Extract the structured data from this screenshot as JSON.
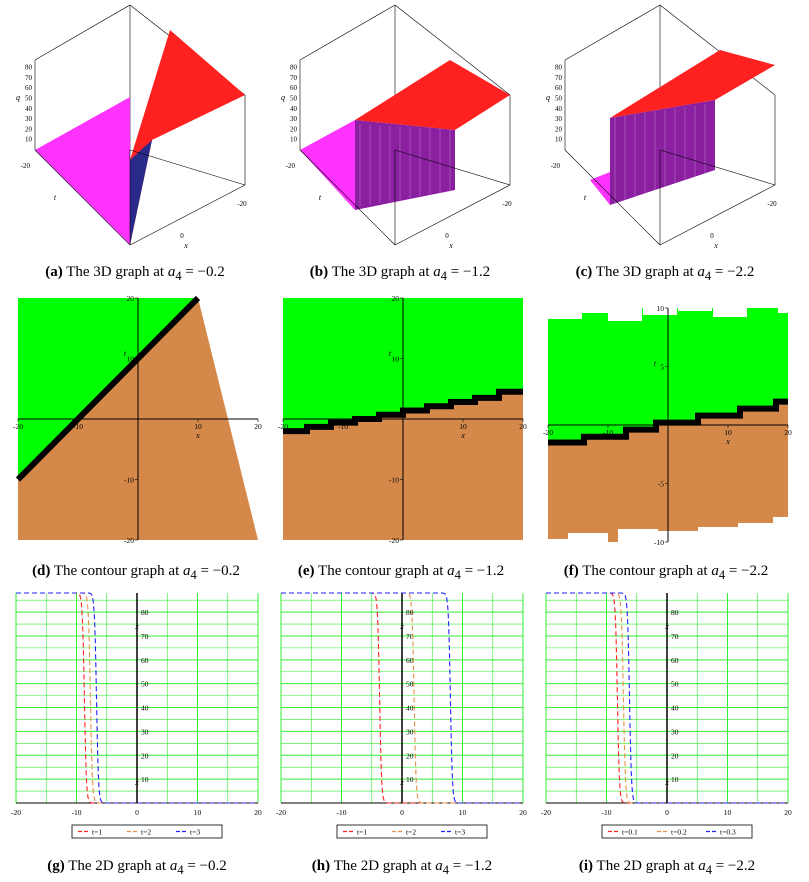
{
  "figures": [
    {
      "id": "a",
      "caption_tag": "(a)",
      "caption_text": "The 3D graph at",
      "param": "a",
      "param_sub": "4",
      "eq": "= −0.2"
    },
    {
      "id": "b",
      "caption_tag": "(b)",
      "caption_text": "The 3D graph at",
      "param": "a",
      "param_sub": "4",
      "eq": "= −1.2"
    },
    {
      "id": "c",
      "caption_tag": "(c)",
      "caption_text": "The 3D graph at",
      "param": "a",
      "param_sub": "4",
      "eq": "= −2.2"
    },
    {
      "id": "d",
      "caption_tag": "(d)",
      "caption_text": "The contour graph at",
      "param": "a",
      "param_sub": "4",
      "eq": "= −0.2"
    },
    {
      "id": "e",
      "caption_tag": "(e)",
      "caption_text": "The contour graph at",
      "param": "a",
      "param_sub": "4",
      "eq": "= −1.2"
    },
    {
      "id": "f",
      "caption_tag": "(f)",
      "caption_text": "The contour graph at",
      "param": "a",
      "param_sub": "4",
      "eq": "= −2.2"
    },
    {
      "id": "g",
      "caption_tag": "(g)",
      "caption_text": "The 2D graph at",
      "param": "a",
      "param_sub": "4",
      "eq": "= −0.2"
    },
    {
      "id": "h",
      "caption_tag": "(h)",
      "caption_text": "The 2D graph at",
      "param": "a",
      "param_sub": "4",
      "eq": "= −1.2"
    },
    {
      "id": "i",
      "caption_tag": "(i)",
      "caption_text": "The 2D graph at",
      "param": "a",
      "param_sub": "4",
      "eq": "= −2.2"
    }
  ],
  "colors": {
    "green": "#00ff00",
    "brown": "#d4894a",
    "magenta": "#ff33ff",
    "red": "#ff2020",
    "purple": "#8a1fa0",
    "black": "#000000"
  },
  "chart_data": [
    {
      "type": "surface3d",
      "a4": -0.2,
      "zlabel": "q",
      "z_ticks": [
        10,
        20,
        30,
        40,
        50,
        60,
        70,
        80
      ],
      "t_tick": [
        "-20"
      ],
      "x_ticks": [
        "0",
        "-20"
      ],
      "xlabel": "x",
      "tlabel": "t"
    },
    {
      "type": "surface3d",
      "a4": -1.2,
      "zlabel": "q",
      "z_ticks": [
        10,
        20,
        30,
        40,
        50,
        60,
        70,
        80
      ],
      "t_tick": [
        "-20"
      ],
      "x_ticks": [
        "0",
        "-20"
      ],
      "xlabel": "x",
      "tlabel": "t"
    },
    {
      "type": "surface3d",
      "a4": -2.2,
      "zlabel": "q",
      "z_ticks": [
        10,
        20,
        30,
        40,
        50,
        60,
        70,
        80
      ],
      "t_tick": [
        "-20"
      ],
      "x_ticks": [
        "0",
        "-20"
      ],
      "xlabel": "x",
      "tlabel": "t"
    },
    {
      "type": "contour",
      "a4": -0.2,
      "xlim": [
        -20,
        20
      ],
      "ylim": [
        -20,
        20
      ],
      "x_ticks": [
        -20,
        -10,
        10,
        20
      ],
      "y_ticks": [
        -20,
        -10,
        10,
        20
      ],
      "xlabel": "x",
      "ylabel": "t",
      "boundary": [
        [
          -20,
          -10
        ],
        [
          10,
          20
        ]
      ]
    },
    {
      "type": "contour",
      "a4": -1.2,
      "xlim": [
        -20,
        20
      ],
      "ylim": [
        -20,
        20
      ],
      "x_ticks": [
        -20,
        -10,
        10,
        20
      ],
      "y_ticks": [
        -20,
        -10,
        10,
        20
      ],
      "xlabel": "x",
      "ylabel": "t",
      "boundary": [
        [
          -20,
          -2
        ],
        [
          -16,
          -2
        ],
        [
          -16,
          -1.3
        ],
        [
          -12,
          -1.3
        ],
        [
          -12,
          -0.6
        ],
        [
          -8,
          -0.6
        ],
        [
          -8,
          0
        ],
        [
          -4,
          0
        ],
        [
          -4,
          0.7
        ],
        [
          0,
          0.7
        ],
        [
          0,
          1.4
        ],
        [
          4,
          1.4
        ],
        [
          4,
          2.1
        ],
        [
          8,
          2.1
        ],
        [
          8,
          2.8
        ],
        [
          12,
          2.8
        ],
        [
          12,
          3.5
        ],
        [
          16,
          3.5
        ],
        [
          16,
          4.5
        ],
        [
          20,
          4.5
        ]
      ]
    },
    {
      "type": "contour",
      "a4": -2.2,
      "xlim": [
        -20,
        20
      ],
      "ylim": [
        -10,
        10
      ],
      "x_ticks": [
        -20,
        -10,
        10,
        20
      ],
      "y_ticks": [
        -10,
        -5,
        5,
        10
      ],
      "xlabel": "x",
      "ylabel": "t",
      "boundary": [
        [
          -20,
          -1.5
        ],
        [
          -14,
          -1.5
        ],
        [
          -14,
          -1
        ],
        [
          -7,
          -1
        ],
        [
          -7,
          -0.4
        ],
        [
          -2,
          -0.4
        ],
        [
          -2,
          0.2
        ],
        [
          5,
          0.2
        ],
        [
          5,
          0.8
        ],
        [
          12,
          0.8
        ],
        [
          12,
          1.4
        ],
        [
          18,
          1.4
        ],
        [
          18,
          2
        ],
        [
          20,
          2
        ]
      ]
    },
    {
      "type": "line",
      "a4": -0.2,
      "xlim": [
        -20,
        20
      ],
      "ylim": [
        0,
        88
      ],
      "x_ticks": [
        -20,
        -10,
        0,
        10,
        20
      ],
      "y_ticks": [
        10,
        20,
        30,
        40,
        50,
        60,
        70,
        80
      ],
      "xlabel": "x",
      "series": [
        {
          "name": "t=1",
          "color": "#ff2020",
          "x0": -8.7
        },
        {
          "name": "t=2",
          "color": "#e8904a",
          "x0": -7.7
        },
        {
          "name": "t=3",
          "color": "#2020ff",
          "x0": -6.7
        }
      ],
      "high": 88
    },
    {
      "type": "line",
      "a4": -1.2,
      "xlim": [
        -20,
        20
      ],
      "ylim": [
        0,
        88
      ],
      "x_ticks": [
        -20,
        -10,
        0,
        10,
        20
      ],
      "y_ticks": [
        10,
        20,
        30,
        40,
        50,
        60,
        70,
        80
      ],
      "xlabel": "x",
      "series": [
        {
          "name": "t=1",
          "color": "#ff2020",
          "x0": -3.7
        },
        {
          "name": "t=2",
          "color": "#e8904a",
          "x0": 2.0
        },
        {
          "name": "t=3",
          "color": "#2020ff",
          "x0": 8.0
        }
      ],
      "high": 88
    },
    {
      "type": "line",
      "a4": -2.2,
      "xlim": [
        -20,
        20
      ],
      "ylim": [
        0,
        88
      ],
      "x_ticks": [
        -20,
        -10,
        0,
        10,
        20
      ],
      "y_ticks": [
        10,
        20,
        30,
        40,
        50,
        60,
        70,
        80
      ],
      "xlabel": "x",
      "series": [
        {
          "name": "t=0.1",
          "color": "#ff2020",
          "x0": -8.2
        },
        {
          "name": "t=0.2",
          "color": "#e8904a",
          "x0": -7.2
        },
        {
          "name": "t=0.3",
          "color": "#2020ff",
          "x0": -6.2
        }
      ],
      "high": 88
    }
  ]
}
